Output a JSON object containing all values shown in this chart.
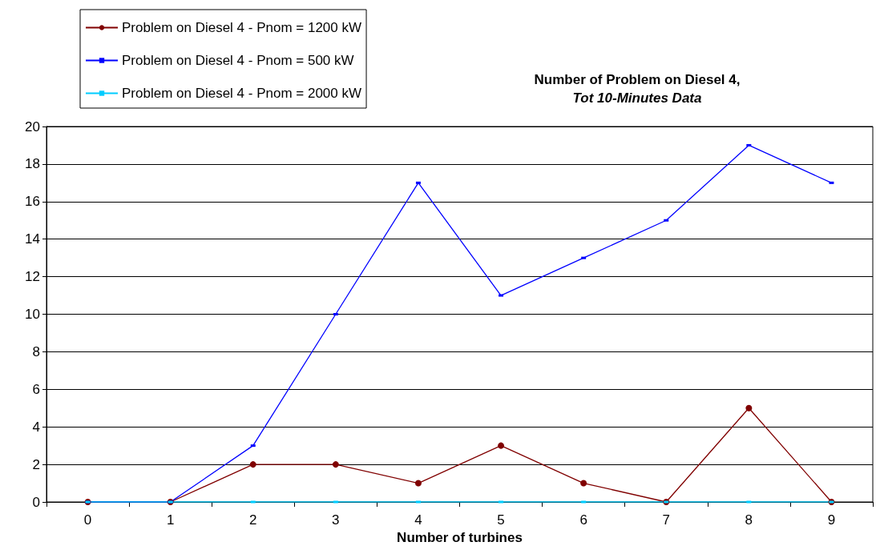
{
  "chart_data": {
    "type": "line",
    "title": "Number of Problem on Diesel 4,",
    "subtitle": "Tot 10-Minutes Data",
    "xlabel": "Number of turbines",
    "categories": [
      "0",
      "1",
      "2",
      "3",
      "4",
      "5",
      "6",
      "7",
      "8",
      "9"
    ],
    "series": [
      {
        "name": "Problem on Diesel 4 - Pnom = 1200 kW",
        "color": "#800000",
        "marker": "circle",
        "values": [
          0,
          0,
          2,
          2,
          1,
          3,
          1,
          0,
          5,
          0
        ]
      },
      {
        "name": "Problem on Diesel 4 - Pnom = 500 kW",
        "color": "#0000ff",
        "marker": "square",
        "values": [
          0,
          0,
          3,
          10,
          17,
          11,
          13,
          15,
          19,
          17
        ]
      },
      {
        "name": "Problem on Diesel 4 - Pnom = 2000 kW",
        "color": "#00ccff",
        "marker": "square",
        "values": [
          0,
          0,
          0,
          0,
          0,
          0,
          0,
          0,
          0,
          0
        ]
      }
    ],
    "ylim": [
      0,
      20
    ],
    "yticks": [
      0,
      2,
      4,
      6,
      8,
      10,
      12,
      14,
      16,
      18,
      20
    ],
    "grid": "y",
    "legend": "top left",
    "line_style": "solid"
  }
}
